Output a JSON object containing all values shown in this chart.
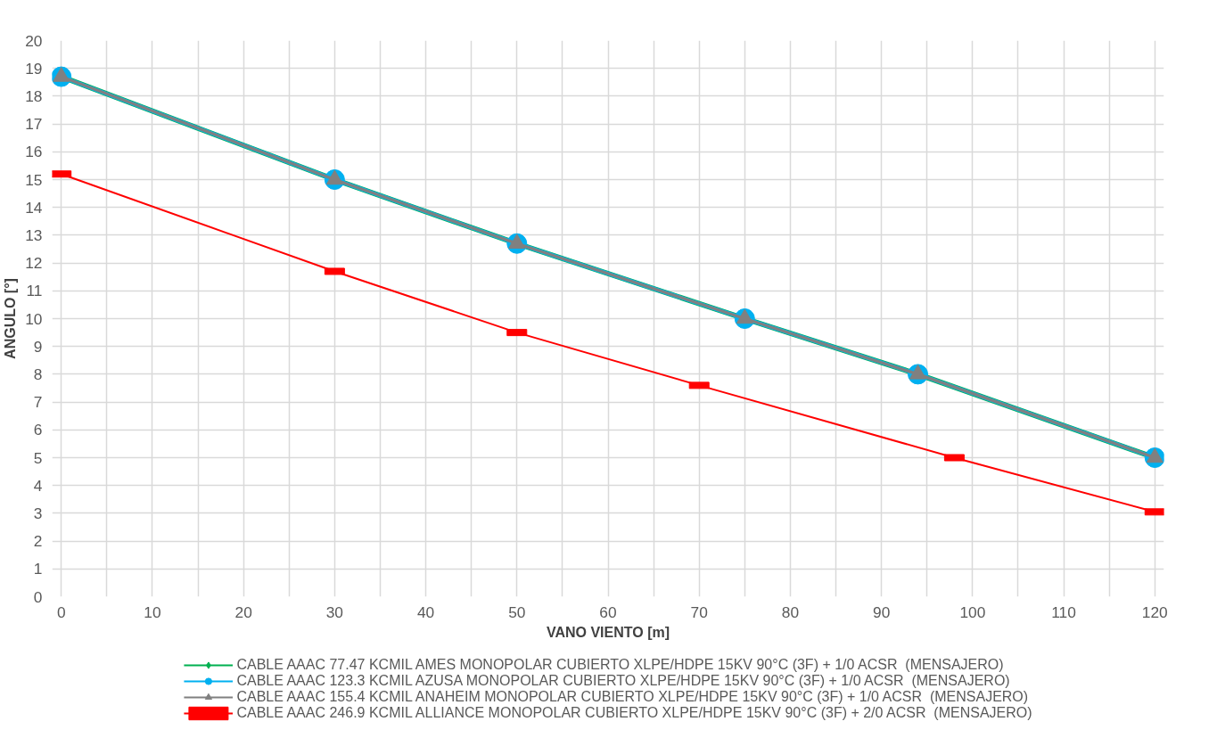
{
  "chart_data": {
    "type": "line",
    "xlabel": "VANO VIENTO [m]",
    "ylabel": "ANGULO [°]",
    "xlim": [
      -1,
      121
    ],
    "ylim": [
      0,
      20
    ],
    "xticks": [
      0,
      {
        "value": 5,
        "label": null
      },
      10,
      {
        "value": 15,
        "label": null
      },
      20,
      {
        "value": 25,
        "label": null
      },
      30,
      {
        "value": 35,
        "label": null
      },
      40,
      {
        "value": 45,
        "label": null
      },
      50,
      {
        "value": 55,
        "label": null
      },
      60,
      {
        "value": 65,
        "label": null
      },
      70,
      {
        "value": 75,
        "label": null
      },
      80,
      {
        "value": 85,
        "label": null
      },
      90,
      {
        "value": 95,
        "label": null
      },
      100,
      {
        "value": 105,
        "label": null
      },
      110,
      {
        "value": 115,
        "label": null
      },
      120
    ],
    "yticks": [
      0,
      1,
      2,
      3,
      4,
      5,
      6,
      7,
      8,
      9,
      10,
      11,
      12,
      13,
      14,
      15,
      16,
      17,
      18,
      19,
      20
    ],
    "grid": true,
    "legend": "bottom",
    "series": [
      {
        "name": "CABLE AAAC 77.47 KCMIL AMES MONOPOLAR CUBIERTO XLPE/HDPE 15KV 90°C (3F) + 1/0 ACSR  (MENSAJERO)",
        "color": "#00b050",
        "marker": "diamond",
        "x": [
          0,
          30,
          50,
          75,
          94,
          120
        ],
        "values": [
          18.7,
          15,
          12.7,
          10,
          8,
          5
        ]
      },
      {
        "name": "CABLE AAAC 123.3 KCMIL AZUSA MONOPOLAR CUBIERTO XLPE/HDPE 15KV 90°C (3F) + 1/0 ACSR  (MENSAJERO)",
        "color": "#00b0f0",
        "marker": "circle",
        "x": [
          0,
          30,
          50,
          75,
          94,
          120
        ],
        "values": [
          18.7,
          15,
          12.7,
          10,
          8,
          5
        ]
      },
      {
        "name": "CABLE AAAC 155.4 KCMIL ANAHEIM MONOPOLAR CUBIERTO XLPE/HDPE 15KV 90°C (3F) + 1/0 ACSR  (MENSAJERO)",
        "color": "#808080",
        "marker": "triangle",
        "x": [
          0,
          30,
          50,
          75,
          94,
          120
        ],
        "values": [
          18.7,
          15,
          12.7,
          10,
          8,
          5
        ]
      },
      {
        "name": "CABLE AAAC 246.9 KCMIL ALLIANCE MONOPOLAR CUBIERTO XLPE/HDPE 15KV 90°C (3F) + 2/0 ACSR  (MENSAJERO)",
        "color": "#ff0000",
        "marker": "square",
        "x": [
          0,
          30,
          50,
          70,
          98,
          120
        ],
        "values": [
          15.2,
          11.7,
          9.5,
          7.6,
          5,
          3.05
        ]
      }
    ]
  }
}
